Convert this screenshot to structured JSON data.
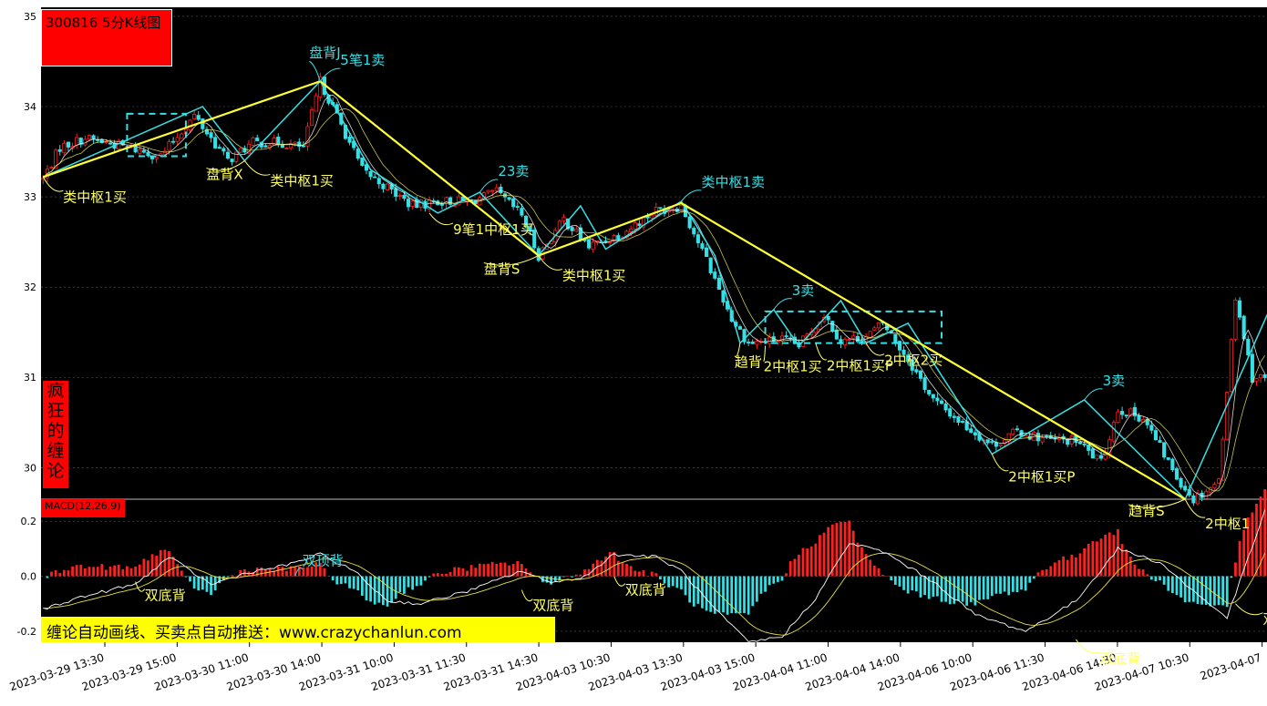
{
  "title": "300816 5分K线图",
  "brand": "疯狂的缠论",
  "promo": "缠论自动画线、买卖点自动推送：www.crazychanlun.com",
  "macd_label": "MACD(12,26,9)",
  "colors": {
    "background": "#000000",
    "up": "#ff2020",
    "down": "#35e0e6",
    "stroke": "#35e0e6",
    "segment": "#ffff33",
    "annotation_yellow": "#ffff66",
    "annotation_cyan": "#35e0e6",
    "grid": "#5a5a5a"
  },
  "chart_data": {
    "type": "candlestick",
    "price_axis": {
      "ticks": [
        "35",
        "34",
        "33",
        "32",
        "31",
        "30"
      ],
      "ylim": [
        29.65,
        35.1
      ]
    },
    "macd_axis": {
      "ticks": [
        "0.2",
        "0.0",
        "-0.2"
      ],
      "ylim": [
        -0.24,
        0.28
      ]
    },
    "x_axis_ticks": [
      "2023-03-29 13:30",
      "2023-03-29 15:00",
      "2023-03-30 11:00",
      "2023-03-30 14:00",
      "2023-03-31 10:00",
      "2023-03-31 11:30",
      "2023-03-31 14:30",
      "2023-04-03 10:30",
      "2023-04-03 13:30",
      "2023-04-03 15:00",
      "2023-04-04 11:00",
      "2023-04-04 14:00",
      "2023-04-06 10:00",
      "2023-04-06 11:30",
      "2023-04-06 14:30",
      "2023-04-07 10:30",
      "2023-04-07"
    ],
    "price_anchors": [
      [
        0,
        33.2
      ],
      [
        4,
        33.55
      ],
      [
        10,
        33.65
      ],
      [
        20,
        33.55
      ],
      [
        28,
        33.45
      ],
      [
        36,
        33.9
      ],
      [
        44,
        33.4
      ],
      [
        50,
        33.6
      ],
      [
        56,
        33.6
      ],
      [
        62,
        33.55
      ],
      [
        66,
        34.28
      ],
      [
        72,
        33.7
      ],
      [
        76,
        33.3
      ],
      [
        82,
        33.1
      ],
      [
        88,
        32.9
      ],
      [
        94,
        32.95
      ],
      [
        102,
        32.95
      ],
      [
        108,
        33.05
      ],
      [
        114,
        32.8
      ],
      [
        118,
        32.35
      ],
      [
        124,
        32.75
      ],
      [
        130,
        32.45
      ],
      [
        138,
        32.6
      ],
      [
        146,
        32.85
      ],
      [
        152,
        32.9
      ],
      [
        158,
        32.3
      ],
      [
        164,
        31.65
      ],
      [
        168,
        31.38
      ],
      [
        176,
        31.42
      ],
      [
        180,
        31.35
      ],
      [
        186,
        31.7
      ],
      [
        190,
        31.4
      ],
      [
        196,
        31.45
      ],
      [
        200,
        31.6
      ],
      [
        206,
        31.2
      ],
      [
        212,
        30.75
      ],
      [
        220,
        30.45
      ],
      [
        226,
        30.25
      ],
      [
        232,
        30.4
      ],
      [
        240,
        30.3
      ],
      [
        246,
        30.3
      ],
      [
        252,
        30.05
      ],
      [
        256,
        30.65
      ],
      [
        262,
        30.55
      ],
      [
        270,
        29.9
      ],
      [
        274,
        29.65
      ],
      [
        280,
        29.85
      ],
      [
        284,
        31.9
      ],
      [
        288,
        31.0
      ]
    ],
    "volatility": 0.055,
    "candle_count": 292,
    "strokes": [
      [
        0,
        33.22
      ],
      [
        38,
        34.0
      ],
      [
        48,
        33.4
      ],
      [
        66,
        34.28
      ],
      [
        78,
        33.3
      ],
      [
        94,
        32.82
      ],
      [
        104,
        33.05
      ],
      [
        118,
        32.35
      ],
      [
        128,
        32.9
      ],
      [
        134,
        32.42
      ],
      [
        152,
        32.95
      ],
      [
        160,
        32.35
      ],
      [
        166,
        31.38
      ],
      [
        174,
        31.75
      ],
      [
        180,
        31.35
      ],
      [
        190,
        31.85
      ],
      [
        196,
        31.38
      ],
      [
        206,
        31.6
      ],
      [
        226,
        30.15
      ],
      [
        248,
        30.75
      ],
      [
        272,
        29.65
      ],
      [
        294,
        31.95
      ]
    ],
    "segments": [
      [
        0,
        33.22
      ],
      [
        66,
        34.28
      ],
      [
        118,
        32.35
      ],
      [
        152,
        32.93
      ],
      [
        272,
        29.65
      ]
    ],
    "pivots": [
      [
        20,
        33.92,
        34,
        33.45
      ],
      [
        172,
        31.73,
        214,
        31.38
      ]
    ],
    "macd_anchors": [
      [
        0,
        -0.12
      ],
      [
        8,
        -0.08
      ],
      [
        16,
        -0.05
      ],
      [
        22,
        -0.03
      ],
      [
        30,
        0.07
      ],
      [
        40,
        -0.03
      ],
      [
        48,
        0.01
      ],
      [
        58,
        0.04
      ],
      [
        66,
        0.08
      ],
      [
        74,
        0.02
      ],
      [
        82,
        -0.09
      ],
      [
        90,
        -0.1
      ],
      [
        102,
        -0.05
      ],
      [
        114,
        0.02
      ],
      [
        120,
        -0.02
      ],
      [
        128,
        -0.01
      ],
      [
        136,
        0.08
      ],
      [
        146,
        0.07
      ],
      [
        152,
        0.02
      ],
      [
        160,
        -0.12
      ],
      [
        168,
        -0.24
      ],
      [
        176,
        -0.22
      ],
      [
        184,
        -0.08
      ],
      [
        192,
        0.12
      ],
      [
        200,
        0.09
      ],
      [
        212,
        -0.02
      ],
      [
        222,
        -0.14
      ],
      [
        234,
        -0.2
      ],
      [
        246,
        -0.09
      ],
      [
        256,
        0.1
      ],
      [
        266,
        0.05
      ],
      [
        276,
        -0.08
      ],
      [
        282,
        -0.15
      ],
      [
        292,
        0.28
      ]
    ],
    "annotations": [
      {
        "text": "盘背J",
        "color": "cyan",
        "i": 66,
        "p": 34.28,
        "tx": -12,
        "ty": -26
      },
      {
        "text": "5笔1卖",
        "color": "cyan",
        "i": 66,
        "p": 34.28,
        "tx": 22,
        "ty": -18
      },
      {
        "text": "类中枢1买",
        "color": "yellow",
        "i": 0,
        "p": 33.22,
        "tx": 22,
        "ty": 27
      },
      {
        "text": "盘背X",
        "color": "yellow",
        "i": 48,
        "p": 33.4,
        "tx": -42,
        "ty": 20
      },
      {
        "text": "类中枢1买",
        "color": "yellow",
        "i": 48,
        "p": 33.4,
        "tx": 28,
        "ty": 27
      },
      {
        "text": "23卖",
        "color": "cyan",
        "i": 104,
        "p": 33.05,
        "tx": 20,
        "ty": -18
      },
      {
        "text": "9笔1中枢1买",
        "color": "yellow",
        "i": 92,
        "p": 32.82,
        "tx": 26,
        "ty": 23
      },
      {
        "text": "盘背S",
        "color": "yellow",
        "i": 118,
        "p": 32.35,
        "tx": -60,
        "ty": 20
      },
      {
        "text": "类中枢1买",
        "color": "yellow",
        "i": 118,
        "p": 32.35,
        "tx": 26,
        "ty": 27
      },
      {
        "text": "类中枢1卖",
        "color": "cyan",
        "i": 152,
        "p": 32.95,
        "tx": 22,
        "ty": -16
      },
      {
        "text": "3卖",
        "color": "cyan",
        "i": 174,
        "p": 31.75,
        "tx": 20,
        "ty": -16
      },
      {
        "text": "趋背",
        "color": "yellow",
        "i": 166,
        "p": 31.38,
        "tx": -6,
        "ty": 26
      },
      {
        "text": "2中枢1买",
        "color": "yellow",
        "i": 172,
        "p": 31.35,
        "tx": -2,
        "ty": 28
      },
      {
        "text": "2中枢1买P",
        "color": "yellow",
        "i": 184,
        "p": 31.38,
        "tx": 12,
        "ty": 30
      },
      {
        "text": "2中枢2买",
        "color": "yellow",
        "i": 196,
        "p": 31.38,
        "tx": 20,
        "ty": 24
      },
      {
        "text": "3卖",
        "color": "cyan",
        "i": 248,
        "p": 30.75,
        "tx": 20,
        "ty": -16
      },
      {
        "text": "2中枢1买P",
        "color": "yellow",
        "i": 226,
        "p": 30.15,
        "tx": 18,
        "ty": 30
      },
      {
        "text": "趋背S",
        "color": "yellow",
        "i": 272,
        "p": 29.65,
        "tx": -62,
        "ty": 18
      },
      {
        "text": "2中枢1",
        "color": "yellow",
        "i": 272,
        "p": 29.65,
        "tx": 22,
        "ty": 32
      },
      {
        "text": "双顶背",
        "color": "cyan",
        "macd": true,
        "i": 60,
        "v": 0.0,
        "tx": 8,
        "ty": -12
      },
      {
        "text": "双底背",
        "color": "yellow",
        "macd": true,
        "i": 22,
        "v": -0.02,
        "tx": 10,
        "ty": 20
      },
      {
        "text": "双底背",
        "color": "yellow",
        "macd": true,
        "i": 114,
        "v": -0.05,
        "tx": 12,
        "ty": 22
      },
      {
        "text": "双底背",
        "color": "yellow",
        "macd": true,
        "i": 136,
        "v": 0.0,
        "tx": 12,
        "ty": 20
      },
      {
        "text": "双底背",
        "color": "yellow",
        "macd": true,
        "i": 246,
        "v": -0.23,
        "tx": 26,
        "ty": 26
      },
      {
        "text": "双底",
        "color": "yellow",
        "macd": true,
        "i": 284,
        "v": -0.1,
        "tx": 30,
        "ty": 22
      }
    ]
  }
}
